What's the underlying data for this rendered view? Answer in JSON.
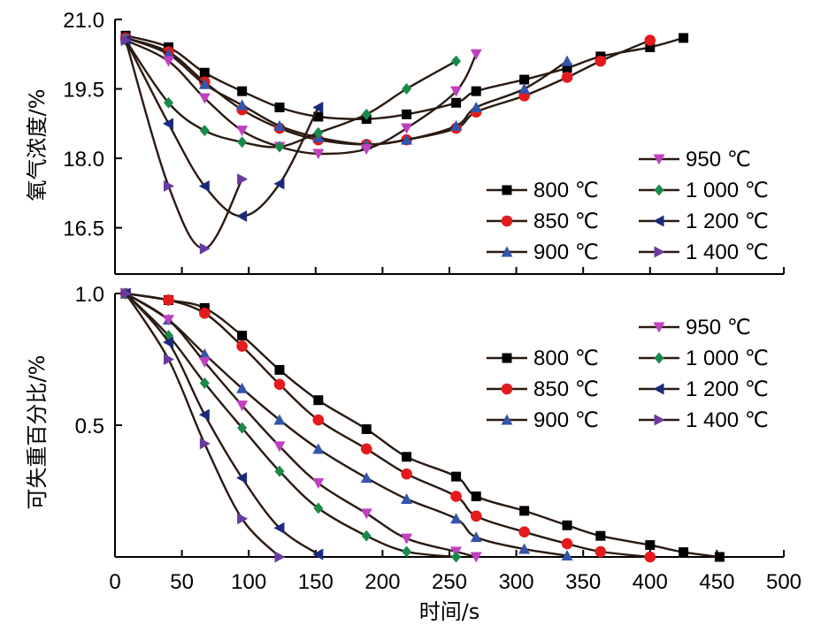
{
  "chart_data": [
    {
      "type": "line",
      "panel": "top",
      "ylabel": "氧气浓度/%",
      "xlim": [
        0,
        500
      ],
      "ylim": [
        15.5,
        21.0
      ],
      "yticks": [
        "21.0",
        "19.5",
        "18.0",
        "16.5"
      ],
      "ytick_values": [
        21.0,
        19.5,
        18.0,
        16.5
      ],
      "legend_position": "right",
      "series": [
        {
          "name": "800 ℃",
          "marker": "square",
          "color": "#000000",
          "x": [
            8,
            40,
            67,
            95,
            123,
            152,
            188,
            218,
            255,
            270,
            306,
            338,
            363,
            400,
            425
          ],
          "y": [
            20.65,
            20.4,
            19.85,
            19.45,
            19.1,
            18.9,
            18.85,
            18.95,
            19.2,
            19.45,
            19.7,
            19.95,
            20.2,
            20.4,
            20.6
          ]
        },
        {
          "name": "850 ℃",
          "marker": "circle",
          "color": "#e41a1c",
          "x": [
            8,
            40,
            67,
            95,
            123,
            152,
            188,
            218,
            255,
            270,
            306,
            338,
            363,
            400
          ],
          "y": [
            20.6,
            20.3,
            19.65,
            19.05,
            18.65,
            18.4,
            18.3,
            18.4,
            18.65,
            19.0,
            19.35,
            19.75,
            20.1,
            20.55
          ]
        },
        {
          "name": "900 ℃",
          "marker": "triangle-up",
          "color": "#3355aa",
          "x": [
            8,
            40,
            67,
            95,
            123,
            152,
            188,
            218,
            255,
            270,
            306,
            338
          ],
          "y": [
            20.6,
            20.25,
            19.6,
            19.15,
            18.7,
            18.45,
            18.3,
            18.4,
            18.7,
            19.1,
            19.5,
            20.1
          ]
        },
        {
          "name": "950 ℃",
          "marker": "triangle-down",
          "color": "#c040c0",
          "x": [
            8,
            40,
            67,
            95,
            123,
            152,
            188,
            218,
            255,
            270
          ],
          "y": [
            20.55,
            20.1,
            19.3,
            18.6,
            18.25,
            18.1,
            18.2,
            18.65,
            19.45,
            20.25
          ]
        },
        {
          "name": "1 000 ℃",
          "marker": "diamond",
          "color": "#1a8a4a",
          "x": [
            8,
            40,
            67,
            95,
            123,
            152,
            188,
            218,
            255
          ],
          "y": [
            20.55,
            19.2,
            18.6,
            18.35,
            18.25,
            18.55,
            18.95,
            19.5,
            20.1
          ]
        },
        {
          "name": "1 200 ℃",
          "marker": "triangle-left",
          "color": "#1a2a7a",
          "x": [
            8,
            40,
            67,
            95,
            123,
            152
          ],
          "y": [
            20.55,
            18.75,
            17.4,
            16.75,
            17.45,
            19.1
          ]
        },
        {
          "name": "1 400 ℃",
          "marker": "triangle-right",
          "color": "#6a3aa0",
          "x": [
            8,
            40,
            67,
            95
          ],
          "y": [
            20.55,
            17.4,
            16.05,
            17.55
          ]
        }
      ]
    },
    {
      "type": "line",
      "panel": "bottom",
      "ylabel": "可失重百分比/%",
      "xlabel": "时间/s",
      "xlim": [
        0,
        500
      ],
      "ylim": [
        0,
        1.0
      ],
      "xticks": [
        "0",
        "50",
        "100",
        "150",
        "200",
        "250",
        "300",
        "350",
        "400",
        "450",
        "500"
      ],
      "xtick_values": [
        0,
        50,
        100,
        150,
        200,
        250,
        300,
        350,
        400,
        450,
        500
      ],
      "yticks": [
        "1.0",
        "0.5"
      ],
      "ytick_values": [
        1.0,
        0.5
      ],
      "legend_position": "right",
      "series": [
        {
          "name": "800 ℃",
          "marker": "square",
          "color": "#000000",
          "x": [
            8,
            40,
            67,
            95,
            123,
            152,
            188,
            218,
            255,
            270,
            306,
            338,
            363,
            400,
            425,
            452
          ],
          "y": [
            1.0,
            0.975,
            0.945,
            0.84,
            0.71,
            0.595,
            0.485,
            0.38,
            0.305,
            0.23,
            0.175,
            0.12,
            0.08,
            0.045,
            0.018,
            0.0
          ]
        },
        {
          "name": "850 ℃",
          "marker": "circle",
          "color": "#e41a1c",
          "x": [
            8,
            40,
            67,
            95,
            123,
            152,
            188,
            218,
            255,
            270,
            306,
            338,
            363,
            400
          ],
          "y": [
            1.0,
            0.975,
            0.925,
            0.8,
            0.655,
            0.52,
            0.41,
            0.315,
            0.23,
            0.155,
            0.095,
            0.05,
            0.02,
            0.0
          ]
        },
        {
          "name": "900 ℃",
          "marker": "triangle-up",
          "color": "#3355aa",
          "x": [
            8,
            40,
            67,
            95,
            123,
            152,
            188,
            218,
            255,
            270,
            306,
            338
          ],
          "y": [
            1.0,
            0.9,
            0.77,
            0.64,
            0.52,
            0.41,
            0.3,
            0.22,
            0.145,
            0.075,
            0.03,
            0.005
          ]
        },
        {
          "name": "950 ℃",
          "marker": "triangle-down",
          "color": "#c040c0",
          "x": [
            8,
            40,
            67,
            95,
            123,
            152,
            188,
            218,
            255,
            270
          ],
          "y": [
            1.0,
            0.9,
            0.74,
            0.575,
            0.42,
            0.28,
            0.165,
            0.07,
            0.02,
            0.0
          ]
        },
        {
          "name": "1 000 ℃",
          "marker": "diamond",
          "color": "#1a8a4a",
          "x": [
            8,
            40,
            67,
            95,
            123,
            152,
            188,
            218,
            255
          ],
          "y": [
            1.0,
            0.84,
            0.66,
            0.49,
            0.325,
            0.185,
            0.08,
            0.02,
            0.0
          ]
        },
        {
          "name": "1 200 ℃",
          "marker": "triangle-left",
          "color": "#1a2a7a",
          "x": [
            8,
            40,
            67,
            95,
            123,
            152
          ],
          "y": [
            1.0,
            0.815,
            0.54,
            0.3,
            0.11,
            0.01
          ]
        },
        {
          "name": "1 400 ℃",
          "marker": "triangle-right",
          "color": "#6a3aa0",
          "x": [
            8,
            40,
            67,
            95,
            123
          ],
          "y": [
            1.0,
            0.75,
            0.43,
            0.145,
            0.0
          ]
        }
      ]
    }
  ]
}
